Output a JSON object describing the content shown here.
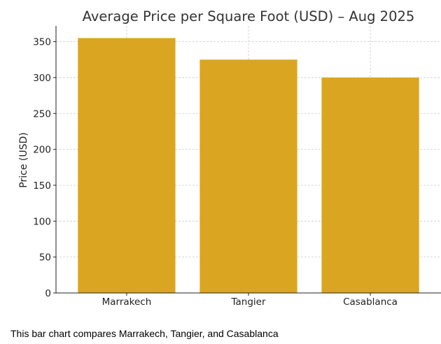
{
  "chart_data": {
    "type": "bar",
    "title": "Average Price per Square Foot (USD) – Aug 2025",
    "xlabel": "",
    "ylabel": "Price (USD)",
    "categories": [
      "Marrakech",
      "Tangier",
      "Casablanca"
    ],
    "values": [
      355,
      325,
      300
    ],
    "ylim": [
      0,
      372
    ],
    "yticks": [
      "0",
      "50",
      "100",
      "150",
      "200",
      "250",
      "300",
      "350"
    ],
    "grid": true,
    "legend": "none",
    "bar_color": "#DAA520"
  },
  "caption": "This bar chart compares Marrakech, Tangier, and Casablanca"
}
